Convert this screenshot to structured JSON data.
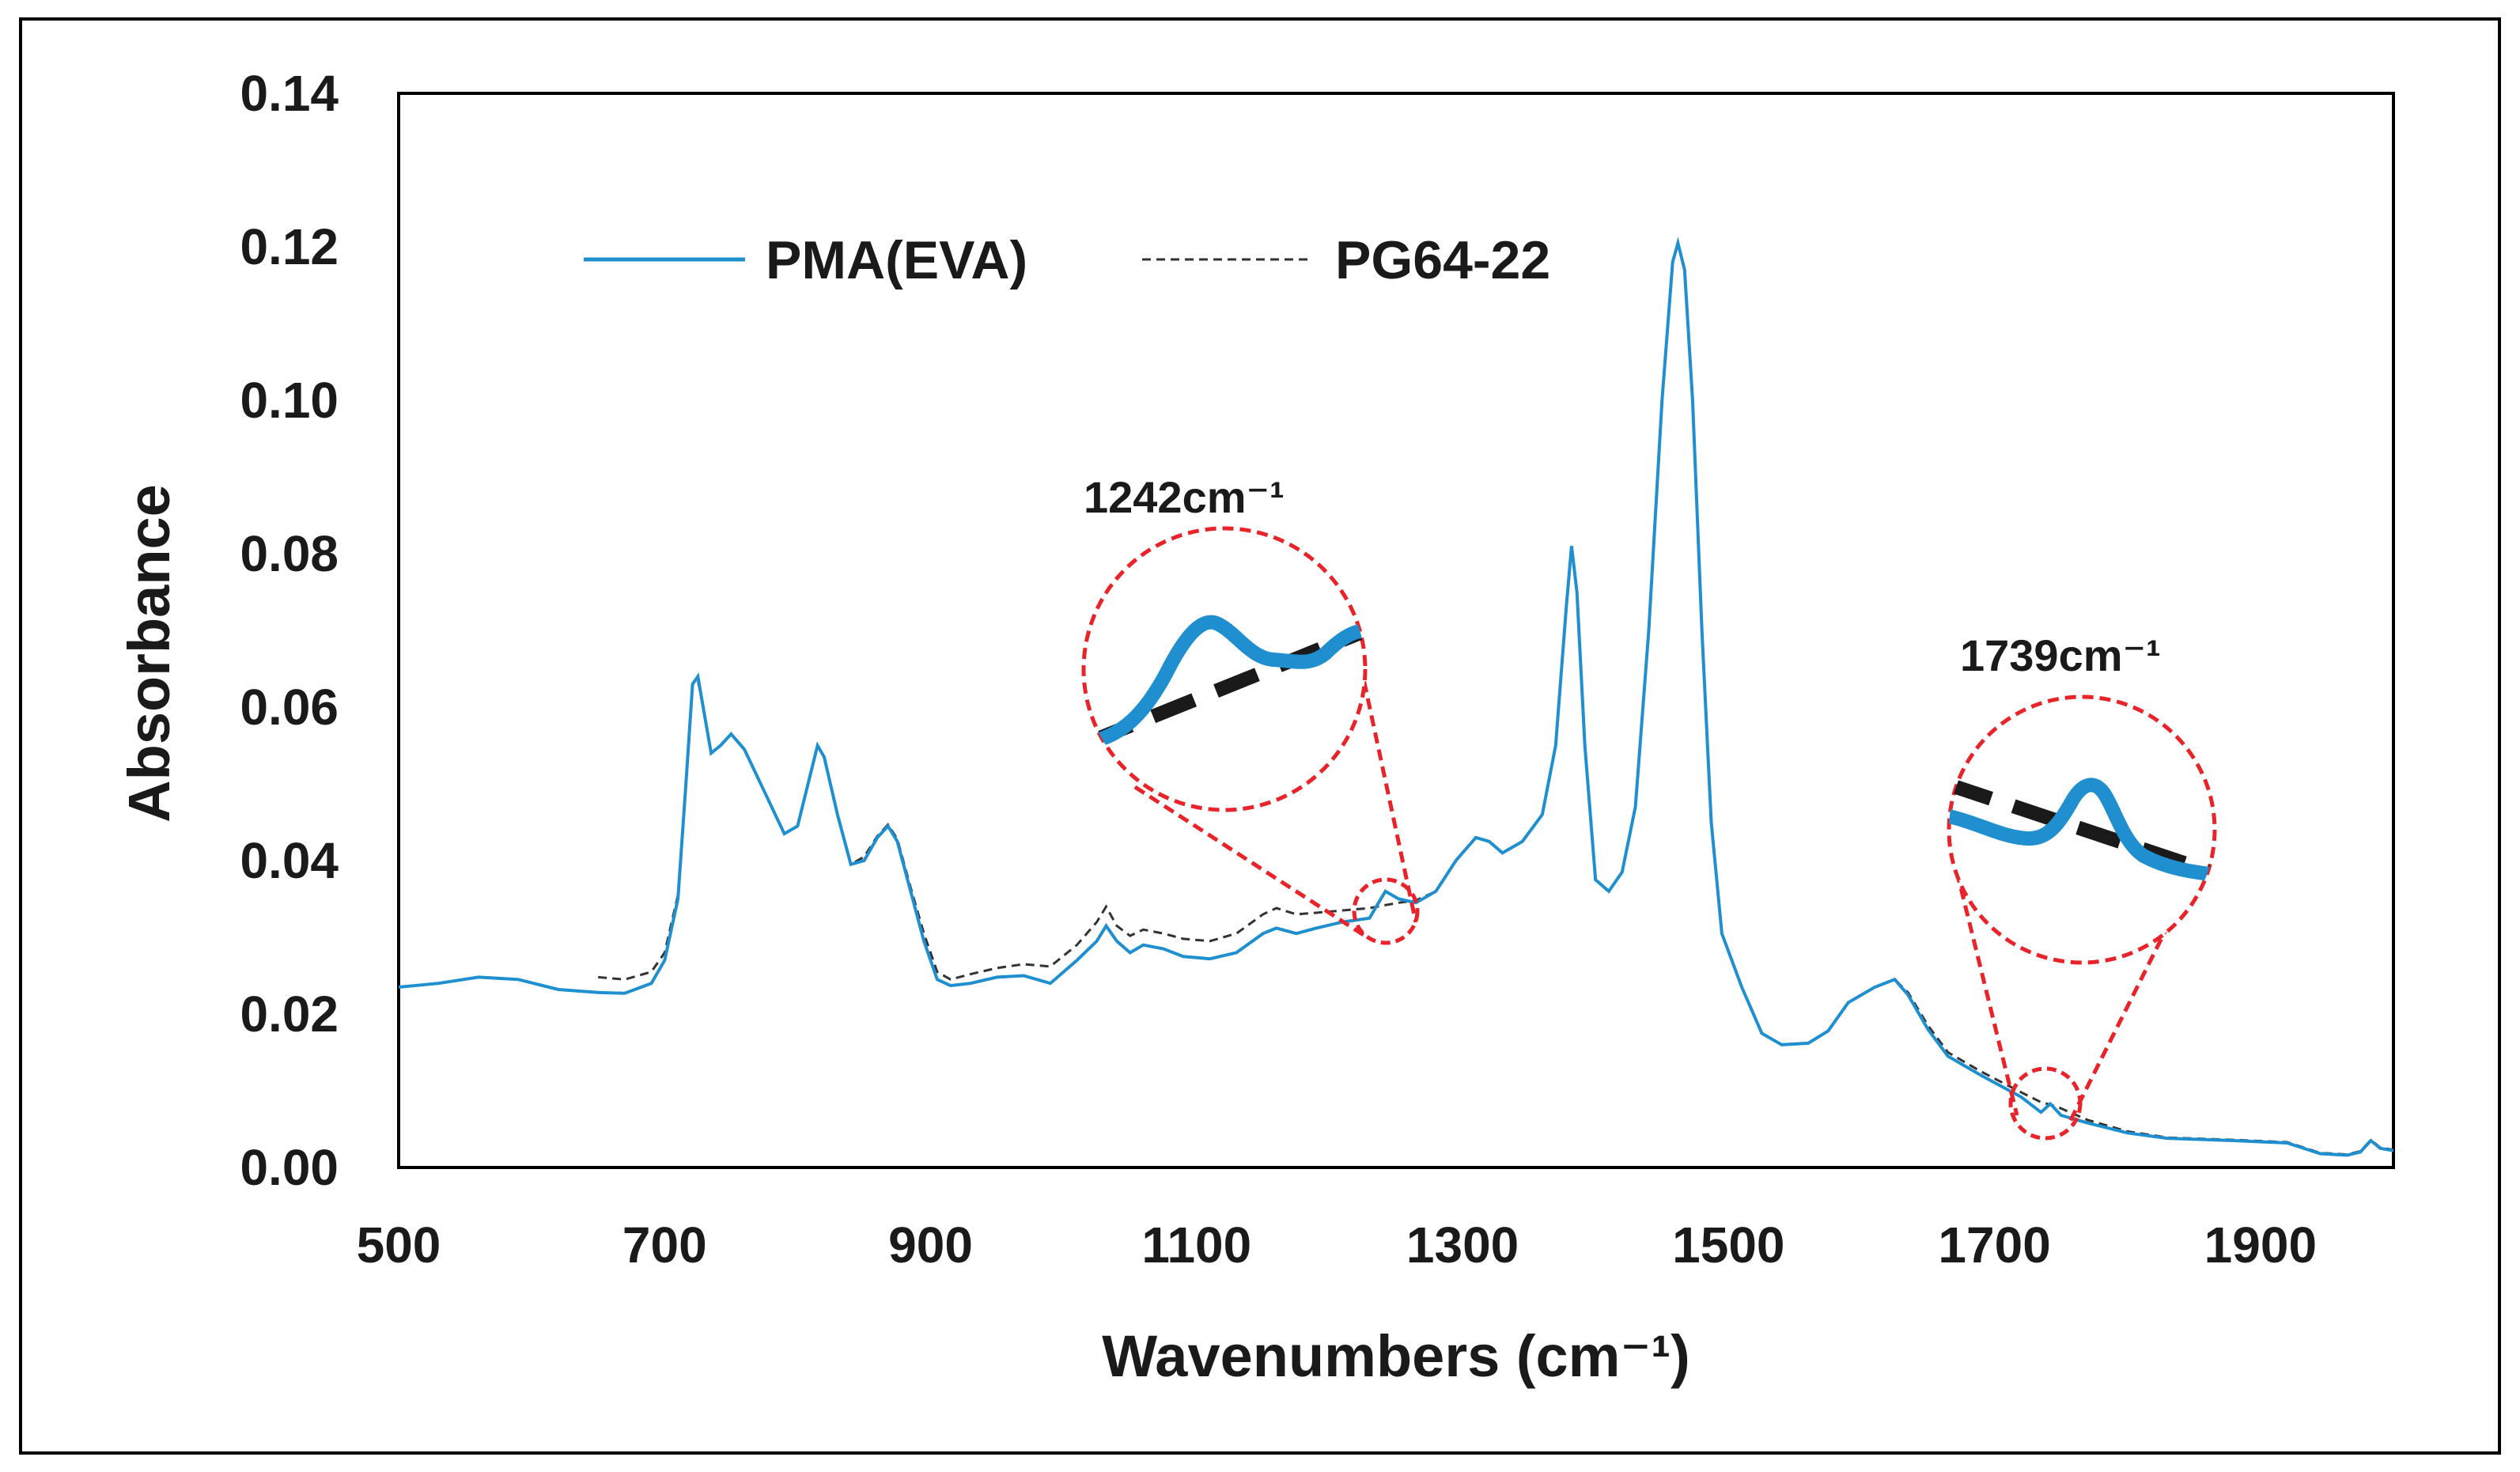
{
  "chart_data": {
    "type": "line",
    "title": "",
    "xlabel": "Wavenumbers (cm⁻¹)",
    "ylabel": "Absorbance",
    "xlim": [
      500,
      2000
    ],
    "ylim": [
      0.0,
      0.14
    ],
    "x_ticks": [
      500,
      700,
      900,
      1100,
      1300,
      1500,
      1700,
      1900
    ],
    "x_tick_labels": [
      "500",
      "700",
      "900",
      "1100",
      "1300",
      "1500",
      "1700",
      "1900"
    ],
    "y_ticks": [
      0.0,
      0.02,
      0.04,
      0.06,
      0.08,
      0.1,
      0.12,
      0.14
    ],
    "y_tick_labels": [
      "0.00",
      "0.02",
      "0.04",
      "0.06",
      "0.08",
      "0.10",
      "0.12",
      "0.14"
    ],
    "grid": false,
    "legend_position": "top-left",
    "series": [
      {
        "name": "PMA(EVA)",
        "color": "#1f8fcf",
        "style": "solid",
        "points": [
          [
            500,
            0.0235
          ],
          [
            530,
            0.024
          ],
          [
            560,
            0.0248
          ],
          [
            590,
            0.0245
          ],
          [
            620,
            0.0232
          ],
          [
            650,
            0.0228
          ],
          [
            670,
            0.0227
          ],
          [
            690,
            0.024
          ],
          [
            700,
            0.027
          ],
          [
            710,
            0.035
          ],
          [
            716,
            0.05
          ],
          [
            721,
            0.063
          ],
          [
            725,
            0.064
          ],
          [
            729,
            0.06
          ],
          [
            735,
            0.054
          ],
          [
            742,
            0.055
          ],
          [
            750,
            0.0565
          ],
          [
            760,
            0.0545
          ],
          [
            775,
            0.049
          ],
          [
            790,
            0.0435
          ],
          [
            800,
            0.0445
          ],
          [
            810,
            0.0515
          ],
          [
            815,
            0.055
          ],
          [
            820,
            0.0535
          ],
          [
            830,
            0.046
          ],
          [
            840,
            0.0395
          ],
          [
            850,
            0.04
          ],
          [
            860,
            0.043
          ],
          [
            868,
            0.0445
          ],
          [
            875,
            0.0425
          ],
          [
            885,
            0.036
          ],
          [
            895,
            0.0295
          ],
          [
            905,
            0.0245
          ],
          [
            915,
            0.0237
          ],
          [
            930,
            0.024
          ],
          [
            950,
            0.0248
          ],
          [
            970,
            0.025
          ],
          [
            990,
            0.024
          ],
          [
            1010,
            0.027
          ],
          [
            1025,
            0.0295
          ],
          [
            1032,
            0.0315
          ],
          [
            1040,
            0.0295
          ],
          [
            1050,
            0.028
          ],
          [
            1060,
            0.029
          ],
          [
            1075,
            0.0285
          ],
          [
            1090,
            0.0275
          ],
          [
            1110,
            0.0272
          ],
          [
            1130,
            0.028
          ],
          [
            1150,
            0.0305
          ],
          [
            1160,
            0.0312
          ],
          [
            1175,
            0.0305
          ],
          [
            1190,
            0.0312
          ],
          [
            1210,
            0.032
          ],
          [
            1230,
            0.0325
          ],
          [
            1242,
            0.036
          ],
          [
            1252,
            0.035
          ],
          [
            1265,
            0.0345
          ],
          [
            1280,
            0.036
          ],
          [
            1295,
            0.04
          ],
          [
            1310,
            0.043
          ],
          [
            1320,
            0.0425
          ],
          [
            1330,
            0.041
          ],
          [
            1345,
            0.0425
          ],
          [
            1360,
            0.046
          ],
          [
            1370,
            0.055
          ],
          [
            1378,
            0.073
          ],
          [
            1382,
            0.081
          ],
          [
            1386,
            0.075
          ],
          [
            1392,
            0.055
          ],
          [
            1400,
            0.0375
          ],
          [
            1410,
            0.036
          ],
          [
            1420,
            0.0385
          ],
          [
            1430,
            0.047
          ],
          [
            1440,
            0.07
          ],
          [
            1450,
            0.1
          ],
          [
            1458,
            0.118
          ],
          [
            1462,
            0.1205
          ],
          [
            1467,
            0.117
          ],
          [
            1473,
            0.1
          ],
          [
            1480,
            0.07
          ],
          [
            1487,
            0.045
          ],
          [
            1495,
            0.0305
          ],
          [
            1510,
            0.0235
          ],
          [
            1525,
            0.0175
          ],
          [
            1540,
            0.016
          ],
          [
            1560,
            0.0162
          ],
          [
            1575,
            0.0178
          ],
          [
            1590,
            0.0215
          ],
          [
            1610,
            0.0235
          ],
          [
            1625,
            0.0245
          ],
          [
            1635,
            0.0225
          ],
          [
            1650,
            0.018
          ],
          [
            1665,
            0.0145
          ],
          [
            1690,
            0.012
          ],
          [
            1720,
            0.0092
          ],
          [
            1735,
            0.0072
          ],
          [
            1742,
            0.0083
          ],
          [
            1750,
            0.0068
          ],
          [
            1770,
            0.0058
          ],
          [
            1800,
            0.0045
          ],
          [
            1830,
            0.0038
          ],
          [
            1880,
            0.0035
          ],
          [
            1920,
            0.0032
          ],
          [
            1945,
            0.0018
          ],
          [
            1965,
            0.0016
          ],
          [
            1975,
            0.002
          ],
          [
            1983,
            0.0035
          ],
          [
            1990,
            0.0025
          ],
          [
            2000,
            0.0022
          ]
        ]
      },
      {
        "name": "PG64-22",
        "color": "#333333",
        "style": "dashed",
        "points": [
          [
            650,
            0.0248
          ],
          [
            670,
            0.0245
          ],
          [
            690,
            0.0255
          ],
          [
            700,
            0.028
          ],
          [
            710,
            0.0355
          ],
          [
            716,
            0.05
          ],
          [
            721,
            0.063
          ],
          [
            725,
            0.0635
          ],
          [
            729,
            0.06
          ],
          [
            735,
            0.054
          ],
          [
            742,
            0.055
          ],
          [
            750,
            0.0565
          ],
          [
            760,
            0.0545
          ],
          [
            775,
            0.049
          ],
          [
            790,
            0.0435
          ],
          [
            800,
            0.0445
          ],
          [
            810,
            0.0515
          ],
          [
            815,
            0.055
          ],
          [
            820,
            0.0535
          ],
          [
            830,
            0.046
          ],
          [
            840,
            0.0395
          ],
          [
            850,
            0.0405
          ],
          [
            860,
            0.0432
          ],
          [
            868,
            0.0447
          ],
          [
            875,
            0.0428
          ],
          [
            885,
            0.0365
          ],
          [
            895,
            0.0305
          ],
          [
            905,
            0.0255
          ],
          [
            915,
            0.0245
          ],
          [
            930,
            0.0252
          ],
          [
            950,
            0.026
          ],
          [
            970,
            0.0265
          ],
          [
            990,
            0.0262
          ],
          [
            1010,
            0.029
          ],
          [
            1025,
            0.032
          ],
          [
            1032,
            0.034
          ],
          [
            1040,
            0.0315
          ],
          [
            1050,
            0.0302
          ],
          [
            1060,
            0.031
          ],
          [
            1075,
            0.0305
          ],
          [
            1090,
            0.0298
          ],
          [
            1110,
            0.0295
          ],
          [
            1130,
            0.0305
          ],
          [
            1150,
            0.033
          ],
          [
            1160,
            0.0338
          ],
          [
            1175,
            0.033
          ],
          [
            1190,
            0.0332
          ],
          [
            1210,
            0.0335
          ],
          [
            1230,
            0.0338
          ],
          [
            1242,
            0.0342
          ],
          [
            1252,
            0.0345
          ],
          [
            1265,
            0.0348
          ],
          [
            1280,
            0.036
          ],
          [
            1295,
            0.04
          ],
          [
            1310,
            0.043
          ],
          [
            1320,
            0.0425
          ],
          [
            1330,
            0.041
          ],
          [
            1345,
            0.0425
          ],
          [
            1360,
            0.046
          ],
          [
            1370,
            0.055
          ],
          [
            1378,
            0.073
          ],
          [
            1382,
            0.081
          ],
          [
            1386,
            0.075
          ],
          [
            1392,
            0.055
          ],
          [
            1400,
            0.0375
          ],
          [
            1410,
            0.036
          ],
          [
            1420,
            0.0385
          ],
          [
            1430,
            0.047
          ],
          [
            1440,
            0.07
          ],
          [
            1450,
            0.1
          ],
          [
            1458,
            0.118
          ],
          [
            1462,
            0.1205
          ],
          [
            1467,
            0.117
          ],
          [
            1473,
            0.1
          ],
          [
            1480,
            0.07
          ],
          [
            1487,
            0.045
          ],
          [
            1495,
            0.0305
          ],
          [
            1510,
            0.0235
          ],
          [
            1525,
            0.0175
          ],
          [
            1540,
            0.016
          ],
          [
            1560,
            0.0162
          ],
          [
            1575,
            0.0178
          ],
          [
            1590,
            0.0215
          ],
          [
            1610,
            0.0235
          ],
          [
            1625,
            0.0245
          ],
          [
            1635,
            0.0228
          ],
          [
            1650,
            0.0185
          ],
          [
            1665,
            0.015
          ],
          [
            1690,
            0.0125
          ],
          [
            1720,
            0.0098
          ],
          [
            1735,
            0.0085
          ],
          [
            1742,
            0.0082
          ],
          [
            1750,
            0.0077
          ],
          [
            1770,
            0.0062
          ],
          [
            1800,
            0.0047
          ],
          [
            1830,
            0.0039
          ],
          [
            1880,
            0.0036
          ],
          [
            1920,
            0.0033
          ],
          [
            1945,
            0.0019
          ],
          [
            1965,
            0.0017
          ],
          [
            1975,
            0.0021
          ],
          [
            1983,
            0.0036
          ],
          [
            1990,
            0.0026
          ],
          [
            2000,
            0.0023
          ]
        ]
      }
    ],
    "annotations": [
      {
        "label": "1242cm⁻¹",
        "x": 1242,
        "y": 0.035,
        "marker": "dashed red circle with magnified inset",
        "inset_position": "upper-left of marked peak"
      },
      {
        "label": "1739cm⁻¹",
        "x": 1739,
        "y": 0.0078,
        "marker": "dashed red circle with magnified inset",
        "inset_position": "above marked peak"
      }
    ]
  },
  "colors": {
    "pma_line": "#1f8fcf",
    "pg_line": "#333333",
    "annotation": "#e8232a"
  }
}
